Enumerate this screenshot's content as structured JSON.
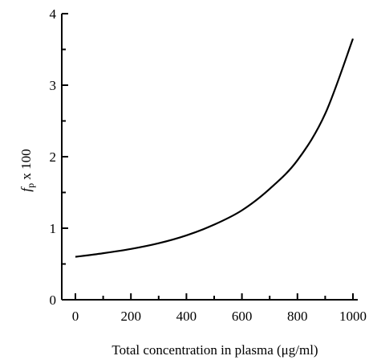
{
  "chart_data": {
    "type": "line",
    "title": "",
    "xlabel": "Total concentration in plasma (μg/ml)",
    "ylabel": {
      "base": "f",
      "subscript": "p",
      "suffix": " x 100"
    },
    "xlim": [
      0,
      1000
    ],
    "ylim": [
      0,
      4
    ],
    "x_ticks": [
      0,
      200,
      400,
      600,
      800,
      1000
    ],
    "y_ticks": [
      0,
      1,
      2,
      3,
      4
    ],
    "x_tick_labels": [
      "0",
      "200",
      "400",
      "600",
      "800",
      "1000"
    ],
    "y_tick_labels": [
      "0",
      "1",
      "2",
      "3",
      "4"
    ],
    "grid": false,
    "series": [
      {
        "x": [
          0,
          100,
          200,
          300,
          400,
          500,
          600,
          700,
          800,
          900,
          1000
        ],
        "y": [
          0.6,
          0.65,
          0.71,
          0.79,
          0.9,
          1.05,
          1.25,
          1.55,
          1.95,
          2.6,
          3.65
        ]
      }
    ]
  }
}
